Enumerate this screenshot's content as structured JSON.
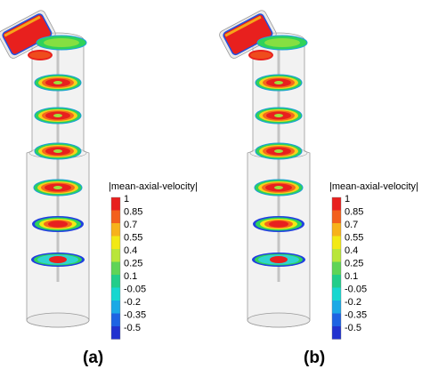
{
  "panels": [
    {
      "label": "(a)"
    },
    {
      "label": "(b)"
    }
  ],
  "legend": {
    "title": "|mean-axial-velocity|",
    "ticks": [
      "1",
      "0.85",
      "0.7",
      "0.55",
      "0.4",
      "0.25",
      "0.1",
      "-0.05",
      "-0.2",
      "-0.35",
      "-0.5"
    ],
    "colors": [
      "#e8201e",
      "#f3601c",
      "#f7b21a",
      "#f2e914",
      "#b9e63a",
      "#5fd456",
      "#22cd8a",
      "#16d7d0",
      "#1ba9e6",
      "#1d63e3",
      "#2132cf"
    ]
  },
  "colors": {
    "pipe_fill": "#d9d9d9",
    "pipe_stroke": "#9a9a9a",
    "ring_outer_blue": "#2040e0",
    "ring_green": "#2fd25a",
    "core_red": "#e8201e"
  }
}
